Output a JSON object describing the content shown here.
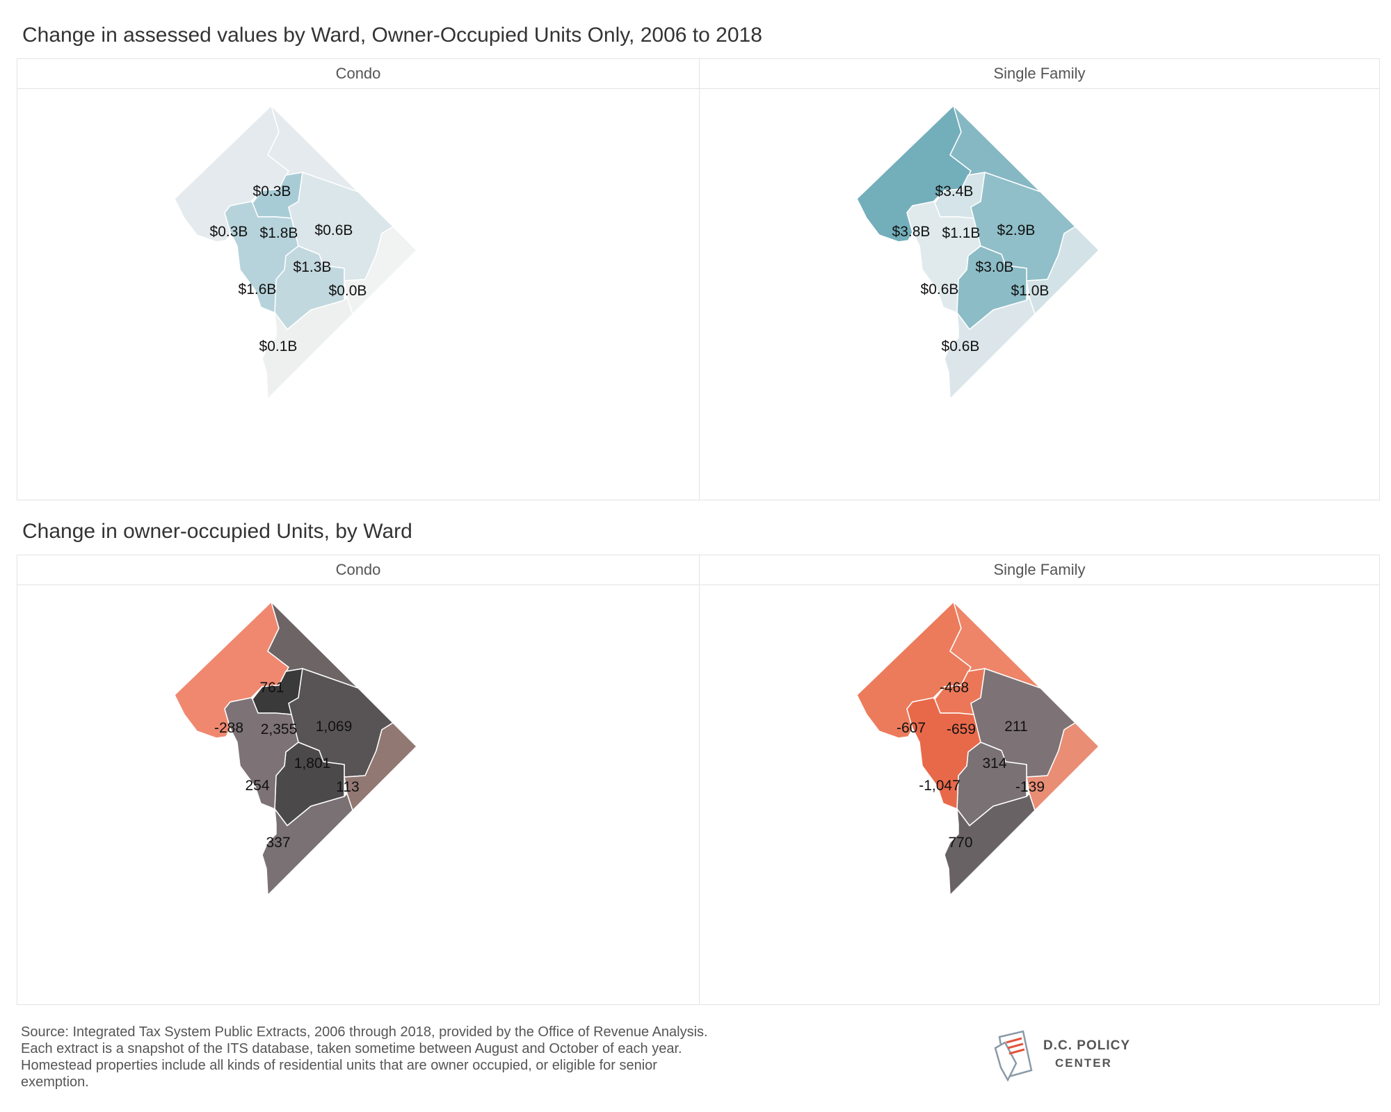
{
  "chart_data": [
    {
      "type": "choropleth",
      "title": "Change in assessed values by Ward, Owner-Occupied Units Only, 2006 to 2018",
      "facets": [
        {
          "label": "Condo",
          "regions": [
            {
              "ward": "3",
              "value": 0.3,
              "label": "$0.3B",
              "color": "#e4eaed"
            },
            {
              "ward": "4",
              "value": 0.3,
              "label": "$0.3B",
              "color": "#e4eaed"
            },
            {
              "ward": "1",
              "value": 1.8,
              "label": "$1.8B",
              "color": "#a8ccd6"
            },
            {
              "ward": "5",
              "value": 0.6,
              "label": "$0.6B",
              "color": "#dbe6ea"
            },
            {
              "ward": "6",
              "value": 1.3,
              "label": "$1.3B",
              "color": "#c2d8df"
            },
            {
              "ward": "2",
              "value": 1.6,
              "label": "$1.6B",
              "color": "#b6d3db"
            },
            {
              "ward": "7",
              "value": 0.0,
              "label": "$0.0B",
              "color": "#f1f2f2"
            },
            {
              "ward": "8",
              "value": 0.1,
              "label": "$0.1B",
              "color": "#eef0f0"
            }
          ]
        },
        {
          "label": "Single Family",
          "regions": [
            {
              "ward": "3",
              "value": 3.8,
              "label": "$3.8B",
              "color": "#73aebb"
            },
            {
              "ward": "4",
              "value": 3.4,
              "label": "$3.4B",
              "color": "#86b8c3"
            },
            {
              "ward": "1",
              "value": 1.1,
              "label": "$1.1B",
              "color": "#d4e4e8"
            },
            {
              "ward": "5",
              "value": 2.9,
              "label": "$2.9B",
              "color": "#90bfc9"
            },
            {
              "ward": "6",
              "value": 3.0,
              "label": "$3.0B",
              "color": "#8cbcc6"
            },
            {
              "ward": "2",
              "value": 0.6,
              "label": "$0.6B",
              "color": "#e0eaed"
            },
            {
              "ward": "7",
              "value": 1.0,
              "label": "$1.0B",
              "color": "#d3e2e6"
            },
            {
              "ward": "8",
              "value": 0.6,
              "label": "$0.6B",
              "color": "#dce6ea"
            }
          ]
        }
      ]
    },
    {
      "type": "choropleth",
      "title": "Change in owner-occupied Units, by Ward",
      "facets": [
        {
          "label": "Condo",
          "regions": [
            {
              "ward": "3",
              "value": -288,
              "label": "-288",
              "color": "#f08870"
            },
            {
              "ward": "4",
              "value": 761,
              "label": "761",
              "color": "#6d6466"
            },
            {
              "ward": "1",
              "value": 2355,
              "label": "2,355",
              "color": "#3a3a3a"
            },
            {
              "ward": "5",
              "value": 1069,
              "label": "1,069",
              "color": "#585455"
            },
            {
              "ward": "6",
              "value": 1801,
              "label": "1,801",
              "color": "#4b4949"
            },
            {
              "ward": "2",
              "value": 254,
              "label": "254",
              "color": "#7d7376"
            },
            {
              "ward": "7",
              "value": 113,
              "label": "113",
              "color": "#927873"
            },
            {
              "ward": "8",
              "value": 337,
              "label": "337",
              "color": "#7a7174"
            }
          ]
        },
        {
          "label": "Single Family",
          "regions": [
            {
              "ward": "3",
              "value": -607,
              "label": "-607",
              "color": "#ec7b5c"
            },
            {
              "ward": "4",
              "value": -468,
              "label": "-468",
              "color": "#ee8468"
            },
            {
              "ward": "1",
              "value": -659,
              "label": "-659",
              "color": "#ec7758"
            },
            {
              "ward": "5",
              "value": 211,
              "label": "211",
              "color": "#7d7376"
            },
            {
              "ward": "6",
              "value": 314,
              "label": "314",
              "color": "#7a7174"
            },
            {
              "ward": "2",
              "value": -1047,
              "label": "-1,047",
              "color": "#e8694a"
            },
            {
              "ward": "7",
              "value": -139,
              "label": "-139",
              "color": "#e98d75"
            },
            {
              "ward": "8",
              "value": 770,
              "label": "770",
              "color": "#696264"
            }
          ]
        }
      ]
    }
  ],
  "source": "Source: Integrated Tax System Public Extracts, 2006 through 2018, provided by the Office of Revenue Analysis. Each extract is a snapshot of the ITS database, taken sometime between August and October of each year. Homestead properties include all kinds of residential units that are owner occupied, or eligible for senior exemption.",
  "logo": {
    "line1": "D.C. POLICY",
    "line2": "CENTER"
  }
}
